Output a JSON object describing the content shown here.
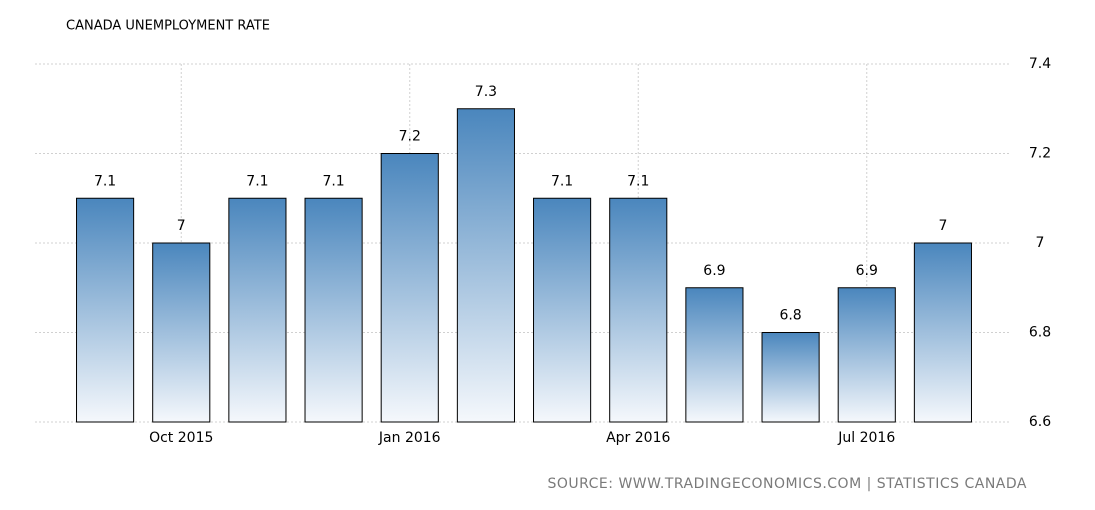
{
  "chart_data": {
    "type": "bar",
    "title": "CANADA UNEMPLOYMENT RATE",
    "source": "SOURCE: WWW.TRADINGECONOMICS.COM | STATISTICS CANADA",
    "categories": [
      null,
      "Oct 2015",
      null,
      null,
      "Jan 2016",
      null,
      null,
      "Apr 2016",
      null,
      null,
      "Jul 2016",
      null
    ],
    "values": [
      7.1,
      7,
      7.1,
      7.1,
      7.2,
      7.3,
      7.1,
      7.1,
      6.9,
      6.8,
      6.9,
      7
    ],
    "color": "#4a86bd",
    "ylim": [
      6.6,
      7.4
    ],
    "yticks": [
      6.6,
      6.8,
      7,
      7.2,
      7.4
    ],
    "grid": true,
    "y_axis_side": "right"
  }
}
